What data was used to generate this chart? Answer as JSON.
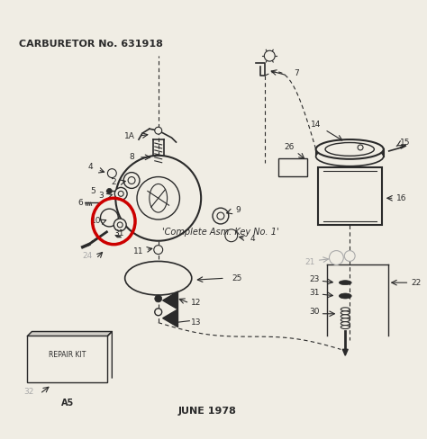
{
  "subtitle": "CARBURETOR No. 631918",
  "footer_left": "REPAIR KIT",
  "footer_code": "A5",
  "footer_date": "JUNE 1978",
  "center_note": "'Complete Asm. Key No. 1'",
  "bg_color": "#f0ede4",
  "line_color": "#2a2a2a",
  "red_circle_color": "#cc0000",
  "gray_label_color": "#aaaaaa",
  "fig_width": 4.74,
  "fig_height": 4.88,
  "dpi": 100
}
